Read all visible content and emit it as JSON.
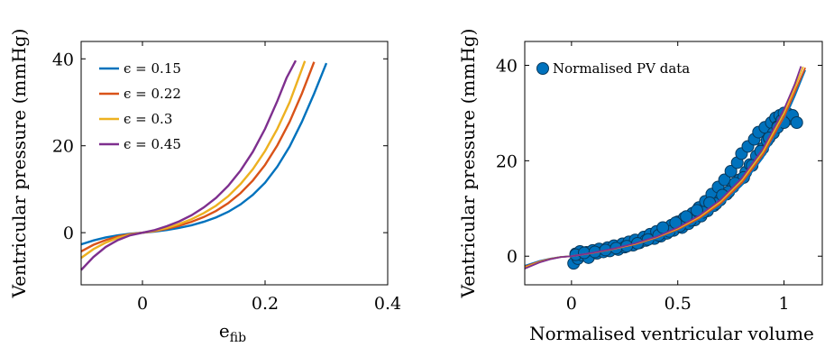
{
  "chart_data": [
    {
      "type": "line",
      "xlabel": "e",
      "xlabel_sub": "fib",
      "ylabel": "Ventricular pressure (mmHg)",
      "xlim": [
        -0.1,
        0.4
      ],
      "ylim": [
        -12,
        44
      ],
      "xticks": [
        "0",
        "0.2",
        "0.4"
      ],
      "yticks": [
        "0",
        "20",
        "40"
      ],
      "xtick_values": [
        0,
        0.2,
        0.4
      ],
      "ytick_values": [
        0,
        20,
        40
      ],
      "legend_position": "top-left",
      "series": [
        {
          "name": "ϵ = 0.15",
          "color": "#0072bd",
          "x": [
            -0.1,
            -0.08,
            -0.06,
            -0.04,
            -0.02,
            0,
            0.02,
            0.04,
            0.06,
            0.08,
            0.1,
            0.12,
            0.14,
            0.16,
            0.18,
            0.2,
            0.22,
            0.24,
            0.26,
            0.28,
            0.3
          ],
          "y": [
            -2.7,
            -1.8,
            -1.1,
            -0.6,
            -0.25,
            0,
            0.25,
            0.6,
            1.1,
            1.7,
            2.5,
            3.5,
            4.8,
            6.5,
            8.7,
            11.5,
            15.2,
            19.8,
            25.5,
            32.0,
            39.0
          ]
        },
        {
          "name": "ϵ = 0.22",
          "color": "#d95319",
          "x": [
            -0.1,
            -0.08,
            -0.06,
            -0.04,
            -0.02,
            0,
            0.02,
            0.04,
            0.06,
            0.08,
            0.1,
            0.12,
            0.14,
            0.16,
            0.18,
            0.2,
            0.22,
            0.24,
            0.26,
            0.28
          ],
          "y": [
            -4.3,
            -2.8,
            -1.7,
            -0.9,
            -0.35,
            0,
            0.35,
            0.9,
            1.6,
            2.5,
            3.6,
            5.0,
            6.8,
            9.1,
            12.0,
            15.6,
            20.1,
            25.5,
            32.0,
            39.3
          ]
        },
        {
          "name": "ϵ = 0.3",
          "color": "#edb120",
          "x": [
            -0.1,
            -0.08,
            -0.06,
            -0.04,
            -0.02,
            0,
            0.02,
            0.04,
            0.06,
            0.08,
            0.1,
            0.12,
            0.14,
            0.16,
            0.18,
            0.2,
            0.22,
            0.24,
            0.265
          ],
          "y": [
            -5.8,
            -3.8,
            -2.3,
            -1.2,
            -0.45,
            0,
            0.45,
            1.1,
            2.0,
            3.1,
            4.5,
            6.2,
            8.4,
            11.2,
            14.6,
            18.8,
            23.9,
            30.0,
            39.5
          ]
        },
        {
          "name": "ϵ = 0.45",
          "color": "#7e2f8e",
          "x": [
            -0.1,
            -0.08,
            -0.06,
            -0.04,
            -0.02,
            0,
            0.02,
            0.04,
            0.06,
            0.08,
            0.1,
            0.12,
            0.14,
            0.16,
            0.18,
            0.2,
            0.22,
            0.235,
            0.25
          ],
          "y": [
            -8.6,
            -5.6,
            -3.3,
            -1.7,
            -0.6,
            0,
            0.6,
            1.5,
            2.6,
            4.0,
            5.8,
            8.0,
            10.8,
            14.3,
            18.6,
            23.9,
            30.3,
            35.6,
            39.6
          ]
        }
      ]
    },
    {
      "type": "scatter",
      "xlabel": "Normalised ventricular volume",
      "ylabel": "Ventricular pressure (mmHg)",
      "xlim": [
        -0.22,
        1.18
      ],
      "ylim": [
        -6,
        45
      ],
      "xticks": [
        "0",
        "0.5",
        "1"
      ],
      "yticks": [
        "0",
        "20",
        "40"
      ],
      "xtick_values": [
        0,
        0.5,
        1
      ],
      "ytick_values": [
        0,
        20,
        40
      ],
      "legend_position": "top-left",
      "legend": "Normalised PV data",
      "marker_color": "#0072bd",
      "points": {
        "x": [
          0.01,
          0.02,
          0.03,
          0.04,
          0.05,
          0.07,
          0.08,
          0.1,
          0.12,
          0.13,
          0.15,
          0.17,
          0.18,
          0.2,
          0.22,
          0.24,
          0.25,
          0.27,
          0.29,
          0.3,
          0.32,
          0.34,
          0.35,
          0.37,
          0.39,
          0.4,
          0.42,
          0.44,
          0.45,
          0.47,
          0.48,
          0.5,
          0.52,
          0.53,
          0.55,
          0.57,
          0.58,
          0.6,
          0.61,
          0.63,
          0.64,
          0.66,
          0.67,
          0.69,
          0.7,
          0.72,
          0.73,
          0.75,
          0.76,
          0.78,
          0.79,
          0.8,
          0.82,
          0.83,
          0.84,
          0.86,
          0.87,
          0.88,
          0.9,
          0.91,
          0.92,
          0.94,
          0.95,
          0.96,
          0.97,
          0.98,
          0.99,
          1.0,
          1.01,
          1.02,
          1.03,
          1.04,
          1.06,
          0.02,
          0.06,
          0.11,
          0.16,
          0.21,
          0.26,
          0.31,
          0.36,
          0.41,
          0.46,
          0.51,
          0.56,
          0.62,
          0.68,
          0.74,
          0.81,
          0.85,
          0.89,
          0.93,
          0.97,
          1.0,
          0.43,
          0.49,
          0.54,
          0.59,
          0.65,
          0.71,
          0.77
        ],
        "y": [
          -1.5,
          0.5,
          -0.5,
          1.0,
          0.2,
          0.8,
          -0.3,
          1.2,
          0.6,
          1.5,
          0.9,
          1.8,
          1.1,
          2.2,
          1.4,
          2.6,
          1.9,
          3.0,
          2.3,
          3.4,
          2.8,
          4.0,
          3.3,
          4.6,
          3.7,
          5.2,
          4.2,
          5.8,
          4.8,
          6.5,
          5.4,
          7.2,
          6.0,
          8.0,
          6.8,
          9.0,
          7.6,
          10.2,
          8.4,
          11.5,
          9.5,
          13.0,
          10.6,
          14.5,
          11.8,
          16.0,
          13.0,
          17.8,
          14.5,
          19.6,
          16.0,
          21.5,
          17.6,
          23.0,
          19.2,
          24.5,
          21.0,
          26.0,
          22.6,
          27.0,
          24.2,
          28.0,
          25.8,
          29.0,
          27.2,
          29.5,
          28.5,
          30.0,
          29.2,
          29.8,
          28.8,
          29.5,
          28.0,
          0.3,
          0.7,
          0.9,
          1.3,
          1.7,
          2.1,
          2.7,
          3.5,
          4.4,
          5.2,
          6.3,
          7.5,
          9.2,
          11.0,
          13.5,
          16.5,
          19.0,
          22.0,
          24.8,
          27.0,
          28.0,
          6.0,
          7.0,
          8.3,
          9.6,
          11.2,
          12.8,
          15.3
        ]
      },
      "fit_lines": [
        {
          "color": "#0072bd",
          "x": [
            -0.22,
            -0.15,
            -0.1,
            -0.05,
            0,
            0.1,
            0.2,
            0.3,
            0.4,
            0.5,
            0.6,
            0.7,
            0.8,
            0.9,
            1.0,
            1.05,
            1.1
          ],
          "y": [
            -2.0,
            -1.0,
            -0.5,
            -0.15,
            0,
            0.6,
            1.4,
            2.4,
            3.7,
            5.4,
            7.6,
            10.6,
            14.8,
            20.6,
            28.5,
            33.5,
            39.0
          ]
        },
        {
          "color": "#d95319",
          "x": [
            -0.22,
            -0.15,
            -0.1,
            -0.05,
            0,
            0.1,
            0.2,
            0.3,
            0.4,
            0.5,
            0.6,
            0.7,
            0.8,
            0.9,
            1.0,
            1.05,
            1.1
          ],
          "y": [
            -2.2,
            -1.1,
            -0.55,
            -0.17,
            0,
            0.65,
            1.5,
            2.5,
            3.9,
            5.6,
            7.9,
            11.0,
            15.3,
            21.2,
            29.2,
            34.3,
            39.5
          ]
        },
        {
          "color": "#edb120",
          "x": [
            -0.22,
            -0.15,
            -0.1,
            -0.05,
            0,
            0.1,
            0.2,
            0.3,
            0.4,
            0.5,
            0.6,
            0.7,
            0.8,
            0.9,
            1.0,
            1.05,
            1.09
          ],
          "y": [
            -2.4,
            -1.2,
            -0.6,
            -0.18,
            0,
            0.7,
            1.55,
            2.6,
            4.0,
            5.8,
            8.2,
            11.4,
            15.8,
            21.8,
            30.0,
            35.2,
            39.7
          ]
        },
        {
          "color": "#7e2f8e",
          "x": [
            -0.22,
            -0.15,
            -0.1,
            -0.05,
            0,
            0.1,
            0.2,
            0.3,
            0.4,
            0.5,
            0.6,
            0.7,
            0.8,
            0.9,
            1.0,
            1.05,
            1.08
          ],
          "y": [
            -2.6,
            -1.3,
            -0.65,
            -0.2,
            0,
            0.72,
            1.6,
            2.7,
            4.1,
            6.0,
            8.5,
            11.8,
            16.3,
            22.5,
            30.8,
            36.0,
            39.8
          ]
        }
      ]
    }
  ]
}
